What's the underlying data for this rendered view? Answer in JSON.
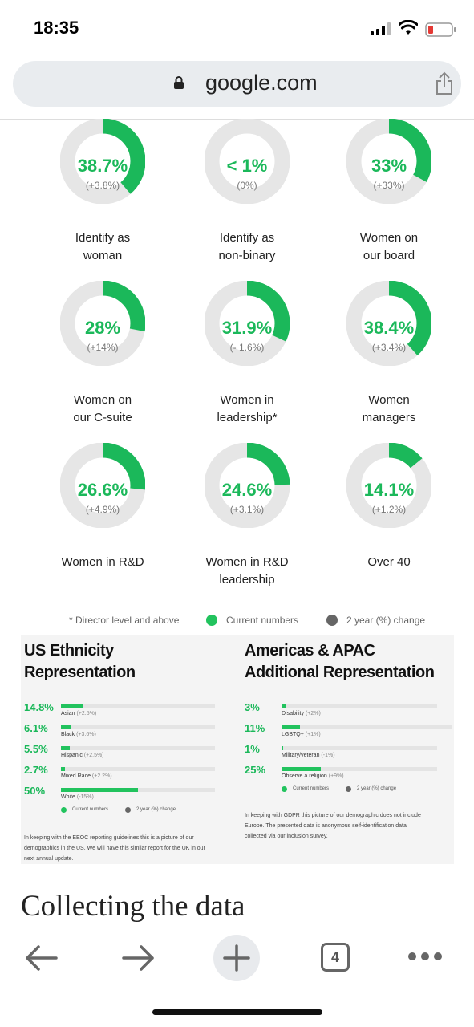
{
  "status": {
    "time": "18:35"
  },
  "browser": {
    "domain": "google.com",
    "tab_count": "4"
  },
  "colors": {
    "accent": "#1bb85a",
    "track": "#e6e6e6",
    "change": "#666666"
  },
  "donuts": [
    {
      "value": "38.7%",
      "change": "(+3.8%)",
      "label_1": "Identify as",
      "label_2": "woman",
      "fraction": 0.387
    },
    {
      "value": "< 1%",
      "change": "(0%)",
      "label_1": "Identify as",
      "label_2": "non-binary",
      "fraction": 0.0
    },
    {
      "value": "33%",
      "change": "(+33%)",
      "label_1": "Women on",
      "label_2": "our board",
      "fraction": 0.33
    },
    {
      "value": "28%",
      "change": "(+14%)",
      "label_1": "Women on",
      "label_2": "our C-suite",
      "fraction": 0.28
    },
    {
      "value": "31.9%",
      "change": "(- 1.6%)",
      "label_1": "Women in",
      "label_2": "leadership*",
      "fraction": 0.319
    },
    {
      "value": "38.4%",
      "change": "(+3.4%)",
      "label_1": "Women",
      "label_2": "managers",
      "fraction": 0.384
    },
    {
      "value": "26.6%",
      "change": "(+4.9%)",
      "label_1": "Women in R&D",
      "label_2": "",
      "fraction": 0.266
    },
    {
      "value": "24.6%",
      "change": "(+3.1%)",
      "label_1": "Women in R&D",
      "label_2": "leadership",
      "fraction": 0.246
    },
    {
      "value": "14.1%",
      "change": "(+1.2%)",
      "label_1": "Over 40",
      "label_2": "",
      "fraction": 0.141
    }
  ],
  "legend": {
    "note": "* Director level and above",
    "current": "Current numbers",
    "change": "2 year (%) change"
  },
  "us": {
    "title_1": "US Ethnicity",
    "title_2": "Representation",
    "rows": [
      {
        "value": "14.8%",
        "name": "Asian",
        "change": "(+2.5%)",
        "fraction": 0.148
      },
      {
        "value": "6.1%",
        "name": "Black",
        "change": "(+3.6%)",
        "fraction": 0.061
      },
      {
        "value": "5.5%",
        "name": "Hispanic",
        "change": "(+2.5%)",
        "fraction": 0.055
      },
      {
        "value": "2.7%",
        "name": "Mixed Race",
        "change": "(+2.2%)",
        "fraction": 0.027
      },
      {
        "value": "50%",
        "name": "White",
        "change": "(-15%)",
        "fraction": 0.5
      }
    ],
    "legend_current": "Current numbers",
    "legend_change": "2 year (%) change",
    "footnote_1": "In keeping with the EEOC reporting guidelines this is a picture of our",
    "footnote_2": "demographics in the US. We will have this similar report for the UK in our",
    "footnote_3": "next annual update."
  },
  "americas": {
    "title_1": "Americas & APAC",
    "title_2": "Additional Representation",
    "rows": [
      {
        "value": "3%",
        "name": "Disability",
        "change": "(+2%)",
        "fraction": 0.03
      },
      {
        "value": "11%",
        "name": "LGBTQ+",
        "change": "(+1%)",
        "fraction": 0.11
      },
      {
        "value": "1%",
        "name": "Military/veteran",
        "change": "(-1%)",
        "fraction": 0.01
      },
      {
        "value": "25%",
        "name": "Observe a religion",
        "change": "(+9%)",
        "fraction": 0.25
      }
    ],
    "legend_current": "Current numbers",
    "legend_change": "2 year (%) change",
    "footnote_1": "In keeping with GDPR this picture of our demographic does not include",
    "footnote_2": "Europe. The presented data is anonymous self-identification data",
    "footnote_3": "collected via our inclusion survey."
  },
  "section": {
    "title": "Collecting the data"
  }
}
